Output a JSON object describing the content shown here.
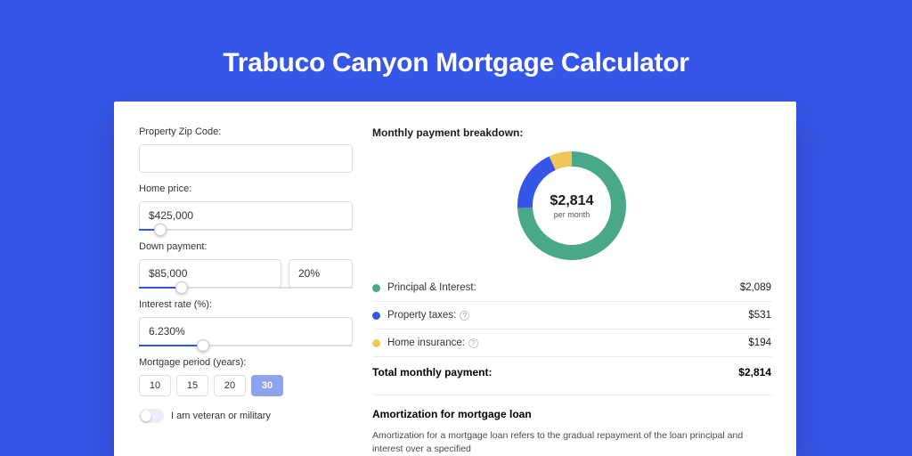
{
  "page": {
    "title": "Trabuco Canyon Mortgage Calculator",
    "background_color": "#3656e8",
    "card_background": "#ffffff"
  },
  "form": {
    "zip": {
      "label": "Property Zip Code:",
      "value": ""
    },
    "price": {
      "label": "Home price:",
      "value": "$425,000",
      "slider_pct": 10
    },
    "down": {
      "label": "Down payment:",
      "value": "$85,000",
      "pct_value": "20%",
      "slider_pct": 20
    },
    "rate": {
      "label": "Interest rate (%):",
      "value": "6.230%",
      "slider_pct": 30
    },
    "period": {
      "label": "Mortgage period (years):",
      "options": [
        "10",
        "15",
        "20",
        "30"
      ],
      "selected_index": 3
    },
    "veteran": {
      "label": "I am veteran or military",
      "checked": false
    }
  },
  "breakdown": {
    "title": "Monthly payment breakdown:",
    "center_value": "$2,814",
    "center_sub": "per month",
    "donut": {
      "size": 122,
      "stroke": 17,
      "slices": [
        {
          "key": "pi",
          "color": "#4aa88a",
          "value": 2089
        },
        {
          "key": "tax",
          "color": "#3656e8",
          "value": 531
        },
        {
          "key": "ins",
          "color": "#f0c659",
          "value": 194
        }
      ]
    },
    "rows": [
      {
        "key": "pi",
        "label": "Principal & Interest:",
        "value": "$2,089",
        "color": "#4aa88a",
        "info": false
      },
      {
        "key": "tax",
        "label": "Property taxes:",
        "value": "$531",
        "color": "#3656e8",
        "info": true
      },
      {
        "key": "ins",
        "label": "Home insurance:",
        "value": "$194",
        "color": "#f0c659",
        "info": true
      }
    ],
    "total_label": "Total monthly payment:",
    "total_value": "$2,814"
  },
  "amortization": {
    "title": "Amortization for mortgage loan",
    "text": "Amortization for a mortgage loan refers to the gradual repayment of the loan principal and interest over a specified"
  }
}
